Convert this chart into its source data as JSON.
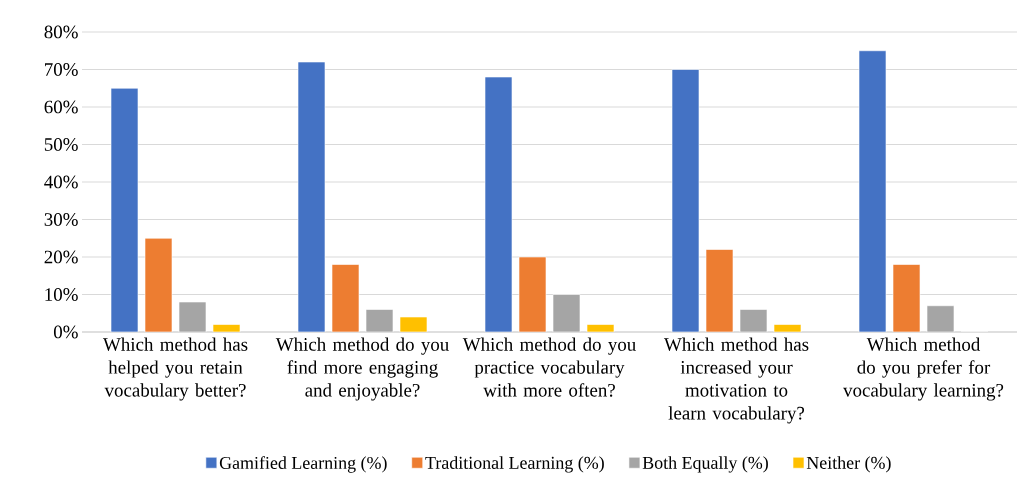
{
  "chart_data": {
    "type": "bar",
    "categories": [
      "Which method has helped you retain vocabulary better?",
      "Which method do you find more engaging and enjoyable?",
      "Which method do you practice vocabulary with more often?",
      "Which method has increased your motivation to learn vocabulary?",
      "Which method do you prefer for vocabulary learning?"
    ],
    "series": [
      {
        "name": "Gamified Learning (%)",
        "color": "#4472c4",
        "values": [
          65,
          72,
          68,
          70,
          75
        ]
      },
      {
        "name": "Traditional Learning (%)",
        "color": "#ed7d31",
        "values": [
          25,
          18,
          20,
          22,
          18
        ]
      },
      {
        "name": "Both Equally (%)",
        "color": "#a5a5a5",
        "values": [
          8,
          6,
          10,
          6,
          7
        ]
      },
      {
        "name": "Neither (%)",
        "color": "#ffc000",
        "values": [
          2,
          4,
          2,
          2,
          0
        ]
      }
    ],
    "ylim": [
      0,
      80
    ],
    "yticks": [
      {
        "value": 0,
        "label": "0%"
      },
      {
        "value": 10,
        "label": "10%"
      },
      {
        "value": 20,
        "label": "20%"
      },
      {
        "value": 30,
        "label": "30%"
      },
      {
        "value": 40,
        "label": "40%"
      },
      {
        "value": 50,
        "label": "50%"
      },
      {
        "value": 60,
        "label": "60%"
      },
      {
        "value": 70,
        "label": "70%"
      },
      {
        "value": 80,
        "label": "80%"
      }
    ],
    "grid": "y",
    "legend": "bottom"
  }
}
